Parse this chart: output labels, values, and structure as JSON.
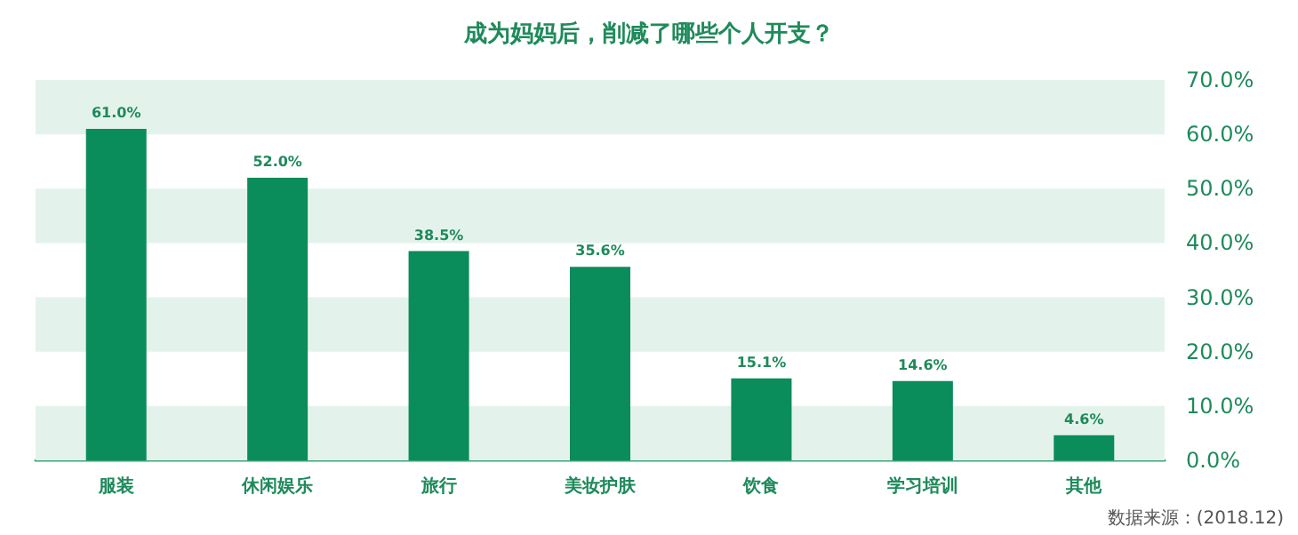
{
  "chart_data": {
    "type": "bar",
    "title": "成为妈妈后，削减了哪些个人开支？",
    "categories": [
      "服装",
      "休闲娱乐",
      "旅行",
      "美妆护肤",
      "饮食",
      "学习培训",
      "其他"
    ],
    "values": [
      61.0,
      52.0,
      38.5,
      35.6,
      15.1,
      14.6,
      4.6
    ],
    "value_labels": [
      "61.0%",
      "52.0%",
      "38.5%",
      "35.6%",
      "15.1%",
      "14.6%",
      "4.6%"
    ],
    "color": "#0b8c5b",
    "ylim": [
      0,
      70
    ],
    "yticks": [
      {
        "value": 0,
        "label": "0.0%"
      },
      {
        "value": 10,
        "label": "10.0%"
      },
      {
        "value": 20,
        "label": "20.0%"
      },
      {
        "value": 30,
        "label": "30.0%"
      },
      {
        "value": 40,
        "label": "40.0%"
      },
      {
        "value": 50,
        "label": "50.0%"
      },
      {
        "value": 60,
        "label": "60.0%"
      },
      {
        "value": 70,
        "label": "70.0%"
      }
    ],
    "bands": [
      {
        "axis": "y",
        "from": 0,
        "to": 10,
        "color": "#e3f3ec"
      },
      {
        "axis": "y",
        "from": 20,
        "to": 30,
        "color": "#e3f3ec"
      },
      {
        "axis": "y",
        "from": 40,
        "to": 50,
        "color": "#e3f3ec"
      },
      {
        "axis": "y",
        "from": 60,
        "to": 70,
        "color": "#e3f3ec"
      }
    ],
    "annotations": [
      "数据来源：(2018.12)"
    ]
  }
}
